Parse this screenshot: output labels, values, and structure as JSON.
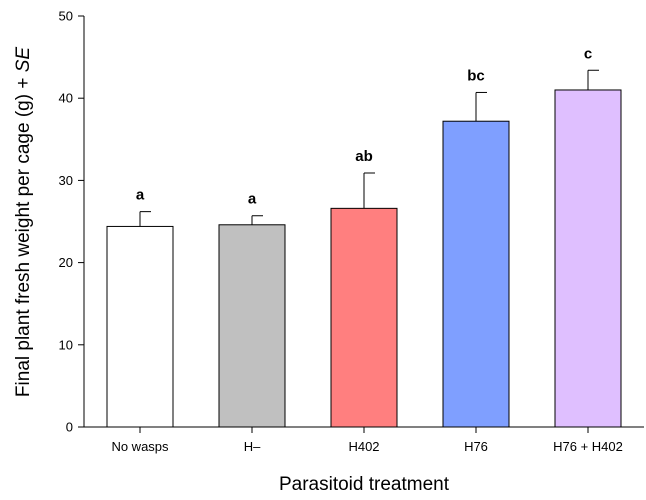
{
  "chart_data": {
    "type": "bar",
    "title": "",
    "xlabel": "Parasitoid treatment",
    "ylabel_prefix": "Final plant fresh weight per cage (g) + ",
    "ylabel_italic": "SE",
    "ylim": [
      0,
      50
    ],
    "yticks": [
      0,
      10,
      20,
      30,
      40,
      50
    ],
    "grid": false,
    "legend": "none",
    "categories": [
      "No wasps",
      "H–",
      "H402",
      "H76",
      "H76 + H402"
    ],
    "values": [
      24.4,
      24.6,
      26.6,
      37.2,
      41.0
    ],
    "errors": [
      1.8,
      1.1,
      4.3,
      3.5,
      2.4
    ],
    "significance_letters": [
      "a",
      "a",
      "ab",
      "bc",
      "c"
    ],
    "colors": [
      "#ffffff",
      "#c0c0c0",
      "#ff7f7f",
      "#7f9fff",
      "#dfbfff"
    ],
    "edge_color": "#000000"
  }
}
